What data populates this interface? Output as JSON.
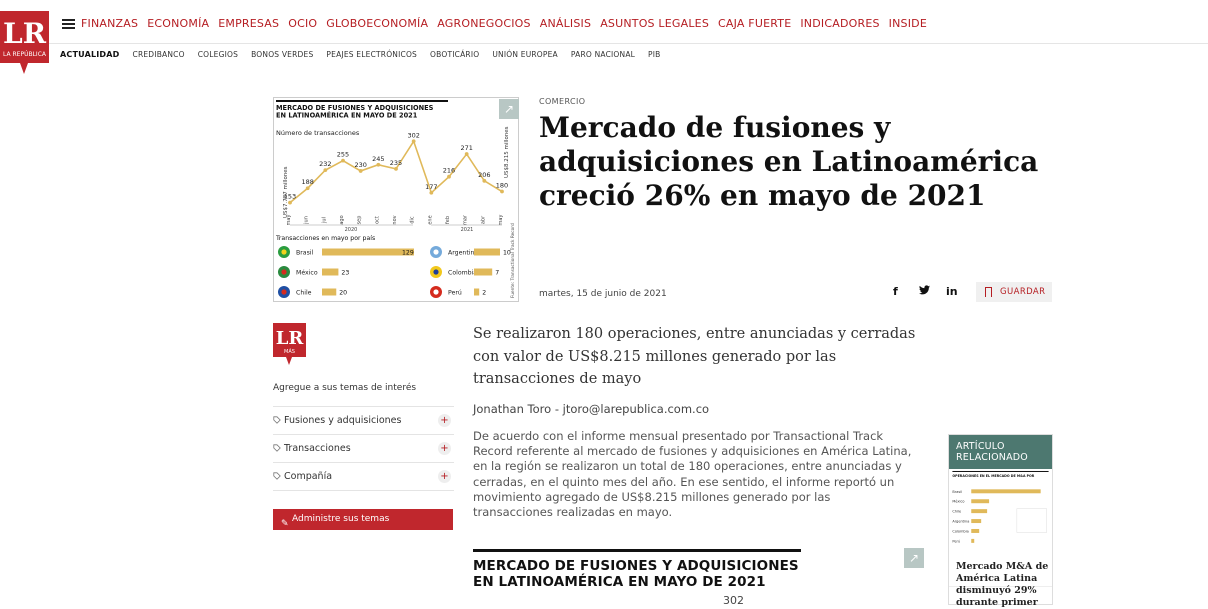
{
  "brand": {
    "name": "LR",
    "subtitle": "LA REPÚBLICA",
    "mas_sub": "MÁS",
    "accent": "#b51d22"
  },
  "main_nav": [
    "FINANZAS",
    "ECONOMÍA",
    "EMPRESAS",
    "OCIO",
    "GLOBOECONOMÍA",
    "AGRONEGOCIOS",
    "ANÁLISIS",
    "ASUNTOS LEGALES",
    "CAJA FUERTE",
    "INDICADORES",
    "INSIDE"
  ],
  "sub_nav": [
    "ACTUALIDAD",
    "CREDIBANCO",
    "COLEGIOS",
    "BONOS VERDES",
    "PEAJES ELECTRÓNICOS",
    "OBOTICÁRIO",
    "UNIÓN EUROPEA",
    "PARO NACIONAL",
    "PIB"
  ],
  "article": {
    "section": "COMERCIO",
    "headline": "Mercado de fusiones y adquisiciones en Latinoamérica creció 26% en mayo de 2021",
    "date": "martes, 15 de junio de 2021",
    "save_label": "GUARDAR",
    "lede": "Se realizaron 180 operaciones, entre anunciadas y cerradas con valor de US$8.215 millones generado por las transacciones de mayo",
    "author": "Jonathan Toro - jtoro@larepublica.com.co",
    "body": "De acuerdo con el informe mensual presentado por Transactional Track Record referente al mercado de fusiones y adquisiciones en América Latina, en la región se realizaron un total de 180 operaciones, entre anunciadas y cerradas, en el quinto mes del año. En ese sentido, el informe reportó un movimiento agregado de US$8.215 millones generado por las transacciones realizadas en mayo.",
    "inline_chart_title": "MERCADO DE FUSIONES Y ADQUISICIONES EN LATINOAMÉRICA EN MAYO DE 2021",
    "inline_chart_peak": "302"
  },
  "share": {
    "facebook": "f",
    "twitter": "t",
    "linkedin": "in"
  },
  "sidebar": {
    "prompt": "Agregue a sus temas de interés",
    "topics": [
      "Fusiones y adquisiciones",
      "Transacciones",
      "Compañía"
    ],
    "plus": "+",
    "admin_label": "Administre sus temas"
  },
  "related": {
    "head": "ARTÍCULO RELACIONADO",
    "title": "Mercado M&A de América Latina disminuyó 29% durante primer"
  },
  "chart_data": {
    "type": "line",
    "title": "MERCADO DE FUSIONES Y ADQUISICIONES EN LATINOAMÉRICA EN MAYO DE 2021",
    "ylabel": "Número de transacciones",
    "categories": [
      "may",
      "jun",
      "jul",
      "ago",
      "sep",
      "oct",
      "nov",
      "dic",
      "ene",
      "feb",
      "mar",
      "abr",
      "may"
    ],
    "year_labels": [
      "2020",
      "2021"
    ],
    "values": [
      153,
      188,
      232,
      255,
      230,
      245,
      235,
      302,
      177,
      216,
      271,
      206,
      180
    ],
    "side_labels": [
      "US$7.787 millones",
      "US$8.215 millones"
    ],
    "bars_title": "Transacciones en mayo por país",
    "countries": [
      {
        "name": "Brasil",
        "value": 129
      },
      {
        "name": "México",
        "value": 23
      },
      {
        "name": "Chile",
        "value": 20
      },
      {
        "name": "Argentina",
        "value": 10
      },
      {
        "name": "Colombia",
        "value": 7
      },
      {
        "name": "Perú",
        "value": 2
      }
    ],
    "source": "Fuente: Transactional Track Record",
    "colors": {
      "line": "#e0b95a",
      "bar": "#e0b95a",
      "text": "#222"
    }
  },
  "related_thumb": {
    "title": "OPERACIONES EN EL MERCADO DE M&A POR PAÍSES EN AMÉRICA LATINA",
    "rows": [
      "Brasil",
      "México",
      "Chile",
      "Argentina",
      "Colombia",
      "Perú"
    ]
  }
}
